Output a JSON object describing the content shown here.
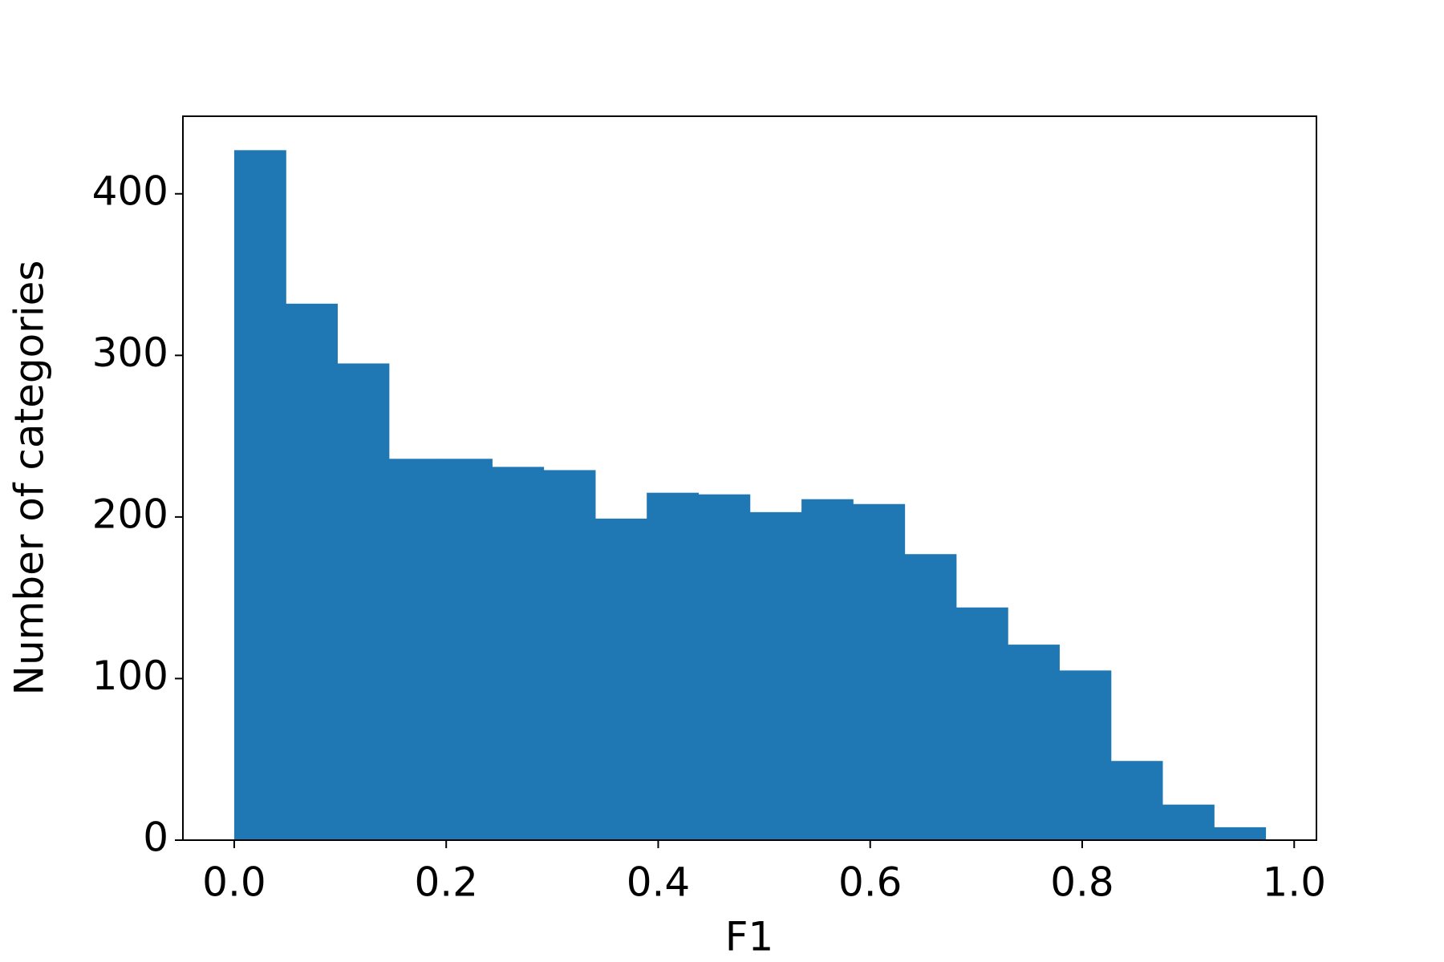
{
  "chart_data": {
    "type": "histogram",
    "xlabel": "F1",
    "ylabel": "Number of categories",
    "bins": [
      0,
      0.0487,
      0.0973,
      0.146,
      0.1946,
      0.2433,
      0.2919,
      0.3406,
      0.3892,
      0.4379,
      0.4865,
      0.5352,
      0.5838,
      0.6325,
      0.6811,
      0.7298,
      0.7784,
      0.8271,
      0.8757,
      0.9244,
      0.973
    ],
    "values": [
      427,
      332,
      295,
      236,
      236,
      231,
      229,
      199,
      215,
      214,
      203,
      211,
      208,
      177,
      144,
      121,
      105,
      49,
      22,
      8
    ],
    "color": "#1f77b4",
    "xlim": [
      -0.0484,
      1.021
    ],
    "ylim": [
      0,
      448
    ],
    "xticks": [
      {
        "value": 0,
        "label": "0.0"
      },
      0.2,
      0.4,
      0.6,
      0.8,
      {
        "value": 1,
        "label": "1.0"
      }
    ],
    "yticks": [
      0,
      100,
      200,
      300,
      400
    ]
  }
}
